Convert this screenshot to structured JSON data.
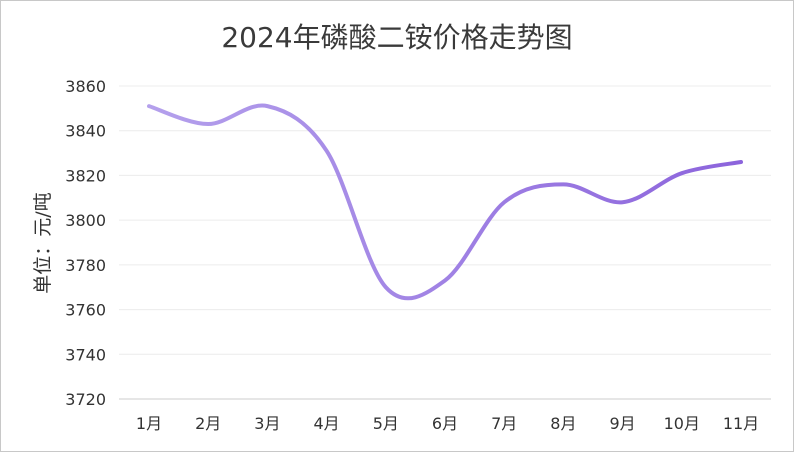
{
  "chart_data": {
    "type": "line",
    "title": "2024年磷酸二铵价格走势图",
    "ylabel": "单位：元/吨",
    "xlabel": "",
    "categories": [
      "1月",
      "2月",
      "3月",
      "4月",
      "5月",
      "6月",
      "7月",
      "8月",
      "9月",
      "10月",
      "11月"
    ],
    "series": [
      {
        "values": [
          3851,
          3843,
          3851,
          3831,
          3770,
          3773,
          3808,
          3816,
          3808,
          3821,
          3826
        ]
      }
    ],
    "ylim": [
      3720,
      3860
    ],
    "yticks": [
      3720,
      3740,
      3760,
      3780,
      3800,
      3820,
      3840,
      3860
    ],
    "grid": true,
    "line_color_start": "#b4a0ec",
    "line_color_end": "#8c64dc"
  }
}
